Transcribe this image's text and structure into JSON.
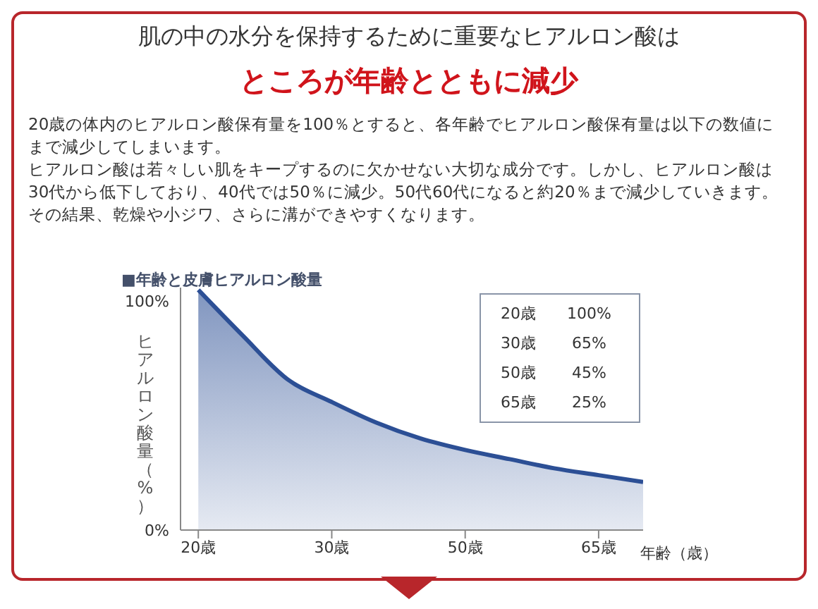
{
  "chart_data": {
    "type": "area",
    "title": "肌の中の水分を保持するために重要なヒアルロン酸は",
    "subtitle": "ところが年齢とともに減少",
    "annotations": [
      "20歳の体内のヒアルロン酸保有量を100％とすると、各年齢でヒアルロン酸保有量は以下の数値にまで減少してしまいます。",
      "ヒアルロン酸は若々しい肌をキープするのに欠かせない大切な成分です。しかし、ヒアルロン酸は30代から低下しており、40代では50％に減少。50代60代になると約20％まで減少していきます。その結果、乾燥や小ジワ、さらに溝ができやすくなります。",
      "■年齢と皮膚ヒアルロン酸量",
      "20歳　　100%",
      "30歳　　 65%",
      "50歳　　 45%",
      "65歳　　 25%"
    ],
    "xlabel": "年齢（歳）",
    "ylabel": "ヒアルロン酸量（%）",
    "categories": [
      "20歳",
      null,
      null,
      "30歳",
      null,
      null,
      "50歳",
      null,
      null,
      "65歳",
      null
    ],
    "series": [
      {
        "color": "#2c4f95",
        "values": [
          105,
          85,
          66,
          56,
          47,
          40,
          35,
          31,
          27,
          24,
          21
        ]
      }
    ],
    "ylim": [
      0,
      106
    ],
    "yticks": [
      {
        "value": 0,
        "label": "0%"
      },
      {
        "value": 100,
        "label": "100%"
      }
    ],
    "grid": false,
    "legend": false
  }
}
